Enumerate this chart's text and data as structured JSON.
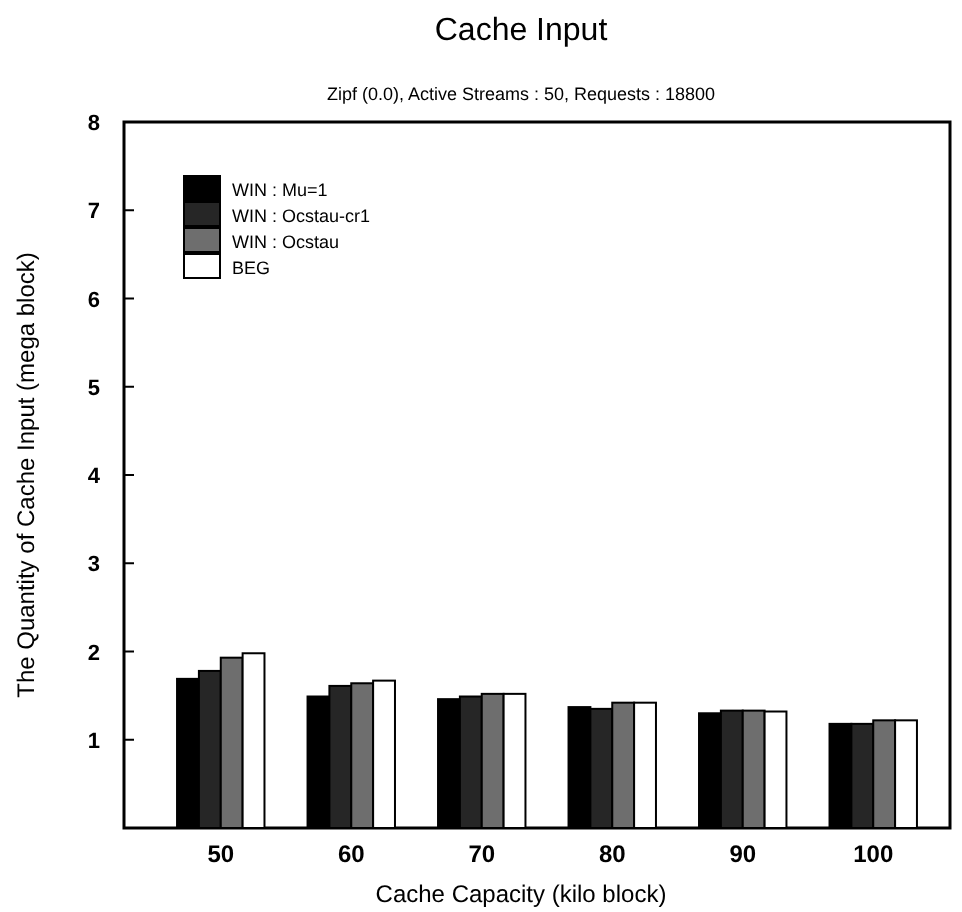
{
  "chart_data": {
    "type": "bar",
    "title": "Cache Input",
    "subtitle": "Zipf (0.0), Active Streams : 50, Requests : 18800",
    "xlabel": "Cache Capacity (kilo block)",
    "ylabel": "The Quantity of Cache Input (mega block)",
    "categories": [
      "50",
      "60",
      "70",
      "80",
      "90",
      "100"
    ],
    "series": [
      {
        "name": "WIN : Mu=1",
        "color": "#000000",
        "values": [
          1.69,
          1.49,
          1.46,
          1.37,
          1.3,
          1.18
        ]
      },
      {
        "name": "WIN : Ocstau-cr1",
        "color": "#262626",
        "values": [
          1.78,
          1.61,
          1.49,
          1.35,
          1.33,
          1.18
        ]
      },
      {
        "name": "WIN : Ocstau",
        "color": "#6e6e6e",
        "values": [
          1.93,
          1.64,
          1.52,
          1.42,
          1.33,
          1.22
        ]
      },
      {
        "name": "BEG",
        "color": "#ffffff",
        "values": [
          1.98,
          1.67,
          1.52,
          1.42,
          1.32,
          1.22
        ]
      }
    ],
    "ylim": [
      0,
      8
    ],
    "yticks": [
      1,
      2,
      3,
      4,
      5,
      6,
      7,
      8
    ],
    "legend": "top left"
  }
}
